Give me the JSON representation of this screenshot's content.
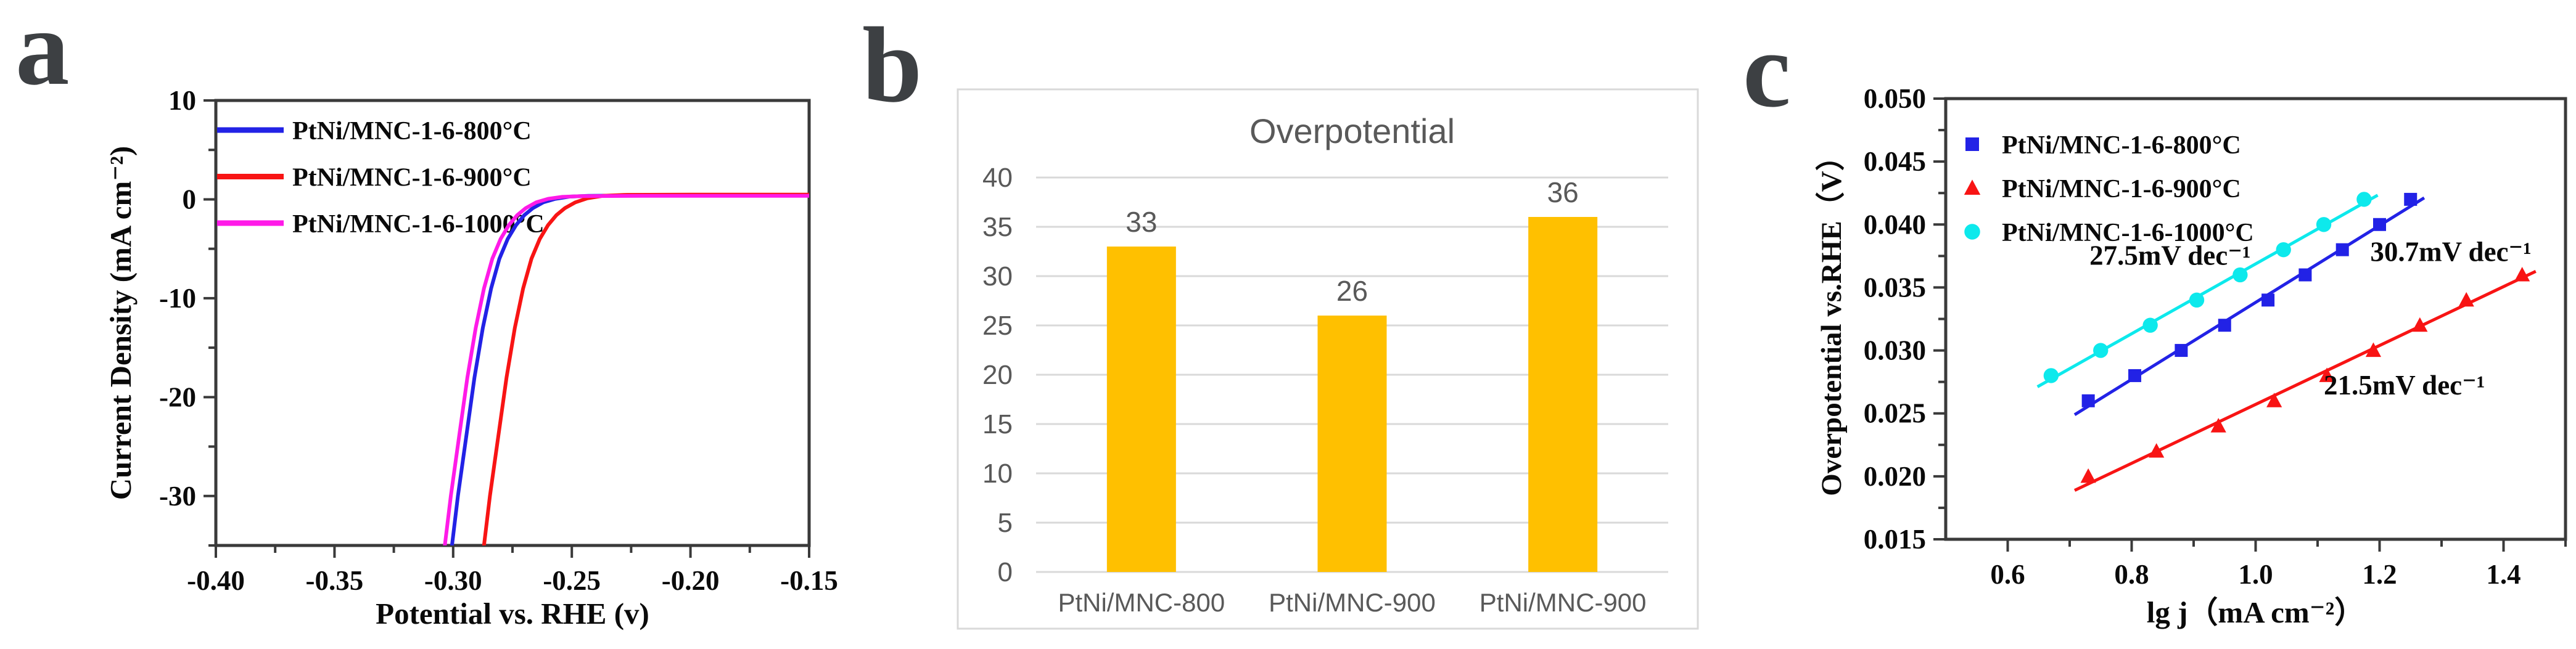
{
  "figure": {
    "background": "#ffffff"
  },
  "panels": {
    "a": {
      "label": "a"
    },
    "b": {
      "label": "b"
    },
    "c": {
      "label": "c"
    }
  },
  "chart_data": [
    {
      "panel": "a",
      "type": "line",
      "title": "",
      "xlabel": "Potential vs. RHE (v)",
      "ylabel": "Current Density (mA cm⁻²)",
      "xlim": [
        -0.4,
        -0.15
      ],
      "ylim": [
        -35,
        10
      ],
      "xticks": [
        -0.4,
        -0.35,
        -0.3,
        -0.25,
        -0.2,
        -0.15
      ],
      "xtick_labels": [
        "-0.40",
        "-0.35",
        "-0.30",
        "-0.25",
        "-0.20",
        "-0.15"
      ],
      "yticks": [
        10,
        0,
        -10,
        -20,
        -30
      ],
      "ytick_labels": [
        "10",
        "0",
        "-10",
        "-20",
        "-30"
      ],
      "frame_color": "#3a3a3a",
      "text_color": "#0a0a0a",
      "legend_position": "top-left-inside",
      "series": [
        {
          "name": "PtNi/MNC-1-6-800°C",
          "color": "#2222e6",
          "points": [
            [
              -0.3005,
              -35
            ],
            [
              -0.298,
              -30
            ],
            [
              -0.2945,
              -24
            ],
            [
              -0.291,
              -18
            ],
            [
              -0.2875,
              -13
            ],
            [
              -0.284,
              -9
            ],
            [
              -0.2805,
              -6
            ],
            [
              -0.277,
              -4
            ],
            [
              -0.2735,
              -2.6
            ],
            [
              -0.27,
              -1.6
            ],
            [
              -0.2665,
              -0.9
            ],
            [
              -0.262,
              -0.3
            ],
            [
              -0.257,
              0.05
            ],
            [
              -0.251,
              0.28
            ],
            [
              -0.243,
              0.36
            ],
            [
              -0.22,
              0.4
            ],
            [
              -0.15,
              0.4
            ]
          ]
        },
        {
          "name": "PtNi/MNC-1-6-900°C",
          "color": "#f81414",
          "points": [
            [
              -0.287,
              -35
            ],
            [
              -0.2845,
              -30
            ],
            [
              -0.281,
              -24
            ],
            [
              -0.2775,
              -18
            ],
            [
              -0.274,
              -13
            ],
            [
              -0.2705,
              -9
            ],
            [
              -0.267,
              -6
            ],
            [
              -0.2635,
              -4
            ],
            [
              -0.26,
              -2.6
            ],
            [
              -0.2565,
              -1.6
            ],
            [
              -0.253,
              -0.9
            ],
            [
              -0.2485,
              -0.3
            ],
            [
              -0.2435,
              0.1
            ],
            [
              -0.237,
              0.35
            ],
            [
              -0.228,
              0.45
            ],
            [
              -0.2,
              0.48
            ],
            [
              -0.15,
              0.48
            ]
          ]
        },
        {
          "name": "PtNi/MNC-1-6-1000°C",
          "color": "#ff1ae8",
          "points": [
            [
              -0.3035,
              -35
            ],
            [
              -0.301,
              -30
            ],
            [
              -0.2975,
              -24
            ],
            [
              -0.294,
              -18
            ],
            [
              -0.2905,
              -13
            ],
            [
              -0.287,
              -9
            ],
            [
              -0.2835,
              -6
            ],
            [
              -0.28,
              -4
            ],
            [
              -0.2765,
              -2.6
            ],
            [
              -0.273,
              -1.6
            ],
            [
              -0.2695,
              -0.9
            ],
            [
              -0.265,
              -0.3
            ],
            [
              -0.26,
              0.05
            ],
            [
              -0.254,
              0.25
            ],
            [
              -0.246,
              0.32
            ],
            [
              -0.22,
              0.35
            ],
            [
              -0.15,
              0.35
            ]
          ]
        }
      ]
    },
    {
      "panel": "b",
      "type": "bar",
      "title": "Overpotential",
      "categories": [
        "PtNi/MNC-800",
        "PtNi/MNC-900",
        "PtNi/MNC-900"
      ],
      "values": [
        33,
        26,
        36
      ],
      "value_labels": [
        "33",
        "26",
        "36"
      ],
      "ylim": [
        0,
        40
      ],
      "yticks": [
        0,
        5,
        10,
        15,
        20,
        25,
        30,
        35,
        40
      ],
      "ytick_labels": [
        "0",
        "5",
        "10",
        "15",
        "20",
        "25",
        "30",
        "35",
        "40"
      ],
      "bar_color": "#FFC000",
      "grid_color": "#D9D9D9",
      "border_color": "#D9D9D9",
      "text_color": "#595959",
      "grid": true,
      "legend_position": "none"
    },
    {
      "panel": "c",
      "type": "scatter",
      "title": "",
      "xlabel": "lg j（mA cm⁻²）",
      "ylabel": "Overpotential vs.RHE（V）",
      "xlim": [
        0.5,
        1.5
      ],
      "ylim": [
        0.015,
        0.05
      ],
      "xticks": [
        0.6,
        0.8,
        1.0,
        1.2,
        1.4
      ],
      "xtick_labels": [
        "0.6",
        "0.8",
        "1.0",
        "1.2",
        "1.4"
      ],
      "yticks": [
        0.015,
        0.02,
        0.025,
        0.03,
        0.035,
        0.04,
        0.045,
        0.05
      ],
      "ytick_labels": [
        "0.015",
        "0.020",
        "0.025",
        "0.030",
        "0.035",
        "0.040",
        "0.045",
        "0.050"
      ],
      "frame_color": "#3a3a3a",
      "text_color": "#0a0a0a",
      "legend_position": "top-left-inside",
      "series": [
        {
          "name": "PtNi/MNC-1-6-800°C",
          "color": "#2222e6",
          "marker": "square",
          "tafel_slope_label": "30.7mV dec⁻¹",
          "points": [
            [
              0.73,
              0.026
            ],
            [
              0.805,
              0.028
            ],
            [
              0.88,
              0.03
            ],
            [
              0.95,
              0.032
            ],
            [
              1.02,
              0.034
            ],
            [
              1.08,
              0.036
            ],
            [
              1.14,
              0.038
            ],
            [
              1.2,
              0.04
            ],
            [
              1.25,
              0.042
            ]
          ]
        },
        {
          "name": "PtNi/MNC-1-6-900°C",
          "color": "#f81414",
          "marker": "triangle",
          "tafel_slope_label": "21.5mV dec⁻¹",
          "points": [
            [
              0.73,
              0.02
            ],
            [
              0.84,
              0.022
            ],
            [
              0.94,
              0.024
            ],
            [
              1.03,
              0.026
            ],
            [
              1.115,
              0.028
            ],
            [
              1.19,
              0.03
            ],
            [
              1.265,
              0.032
            ],
            [
              1.34,
              0.034
            ],
            [
              1.43,
              0.036
            ]
          ]
        },
        {
          "name": "PtNi/MNC-1-6-1000°C",
          "color": "#0de9ec",
          "marker": "circle",
          "tafel_slope_label": "27.5mV dec⁻¹",
          "points": [
            [
              0.67,
              0.028
            ],
            [
              0.75,
              0.03
            ],
            [
              0.83,
              0.032
            ],
            [
              0.905,
              0.034
            ],
            [
              0.975,
              0.036
            ],
            [
              1.045,
              0.038
            ],
            [
              1.11,
              0.04
            ],
            [
              1.175,
              0.042
            ]
          ]
        }
      ],
      "annotations": [
        {
          "text": "27.5mV dec⁻¹",
          "x": 0.862,
          "y": 0.0368
        },
        {
          "text": "30.7mV dec⁻¹",
          "x": 1.315,
          "y": 0.0371
        },
        {
          "text": "21.5mV dec⁻¹",
          "x": 1.24,
          "y": 0.0265
        }
      ]
    }
  ]
}
